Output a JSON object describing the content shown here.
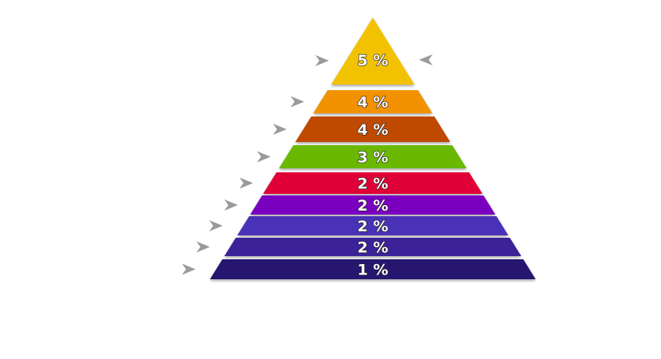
{
  "pyramid": {
    "tiers": [
      {
        "label": "5 %",
        "color": "#f2c200"
      },
      {
        "label": "4 %",
        "color": "#f29200"
      },
      {
        "label": "4 %",
        "color": "#c04a00"
      },
      {
        "label": "3 %",
        "color": "#6ab800"
      },
      {
        "label": "2 %",
        "color": "#e00038"
      },
      {
        "label": "2 %",
        "color": "#7a00c0"
      },
      {
        "label": "2 %",
        "color": "#4a30b8"
      },
      {
        "label": "2 %",
        "color": "#3a2499"
      },
      {
        "label": "1 %",
        "color": "#261670"
      }
    ],
    "pointer_color": "#9a9a9a",
    "pointer_icon": "arrowhead-icon"
  }
}
